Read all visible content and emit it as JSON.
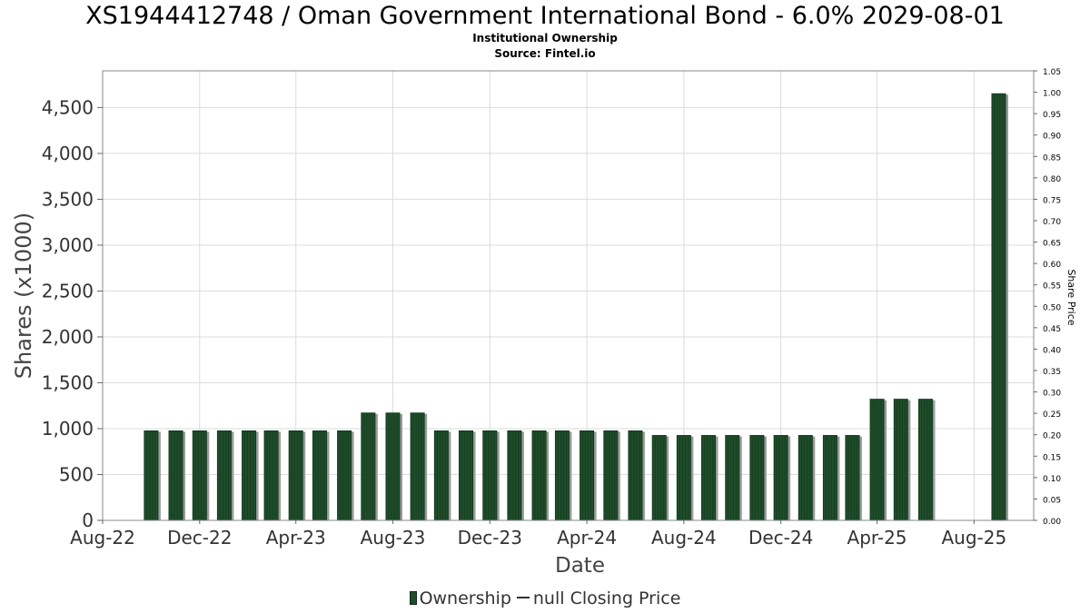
{
  "header": {
    "title": "XS1944412748 / Oman Government International Bond - 6.0% 2029-08-01",
    "subtitle": "Institutional Ownership",
    "source": "Source: Fintel.io"
  },
  "legend": {
    "ownership_label": "Ownership",
    "price_label": "null Closing Price"
  },
  "colors": {
    "bar_fill": "#1f4d2b",
    "bar_dark": "#123a1c",
    "bar_shadow": "#9a9a9a",
    "grid": "#dcdcdc",
    "frame": "#888888"
  },
  "chart_data": {
    "type": "bar",
    "title": "XS1944412748 / Oman Government International Bond - 6.0% 2029-08-01",
    "subtitle": "Institutional Ownership",
    "xlabel": "Date",
    "ylabel": "Shares (x1000)",
    "y2label": "Share Price",
    "x_ticks": [
      "Aug-22",
      "Dec-22",
      "Apr-23",
      "Aug-23",
      "Dec-23",
      "Apr-24",
      "Aug-24",
      "Dec-24",
      "Apr-25",
      "Aug-25"
    ],
    "x_range": [
      "2022-08-01",
      "2025-10-15"
    ],
    "ylim": [
      0,
      4900
    ],
    "y_ticks": [
      0,
      500,
      1000,
      1500,
      2000,
      2500,
      3000,
      3500,
      4000,
      4500
    ],
    "y_tick_labels": [
      "0",
      "500",
      "1,000",
      "1,500",
      "2,000",
      "2,500",
      "3,000",
      "3,500",
      "4,000",
      "4,500"
    ],
    "y2lim": [
      0,
      1.05
    ],
    "y2_tick_labels": [
      "0.00",
      "0.05",
      "0.10",
      "0.15",
      "0.20",
      "0.25",
      "0.30",
      "0.35",
      "0.40",
      "0.45",
      "0.50",
      "0.55",
      "0.60",
      "0.65",
      "0.70",
      "0.75",
      "0.80",
      "0.85",
      "0.90",
      "0.95",
      "1.00",
      "1.05"
    ],
    "grid": true,
    "legend_position": "bottom",
    "series": [
      {
        "name": "Ownership",
        "x": [
          "2022-10-01",
          "2022-11-01",
          "2022-12-01",
          "2023-01-01",
          "2023-02-01",
          "2023-03-01",
          "2023-04-01",
          "2023-05-01",
          "2023-06-01",
          "2023-07-01",
          "2023-08-01",
          "2023-09-01",
          "2023-10-01",
          "2023-11-01",
          "2023-12-01",
          "2024-01-01",
          "2024-02-01",
          "2024-03-01",
          "2024-04-01",
          "2024-05-01",
          "2024-06-01",
          "2024-07-01",
          "2024-08-01",
          "2024-09-01",
          "2024-10-01",
          "2024-11-01",
          "2024-12-01",
          "2025-01-01",
          "2025-02-01",
          "2025-03-01",
          "2025-04-01",
          "2025-05-01",
          "2025-06-01",
          "2025-09-01"
        ],
        "values": [
          975,
          975,
          975,
          975,
          975,
          975,
          975,
          975,
          975,
          1170,
          1170,
          1170,
          975,
          975,
          975,
          975,
          975,
          975,
          975,
          975,
          975,
          925,
          925,
          925,
          925,
          925,
          925,
          925,
          925,
          925,
          1320,
          1320,
          1320,
          4650
        ]
      },
      {
        "name": "null Closing Price",
        "values": []
      }
    ]
  }
}
